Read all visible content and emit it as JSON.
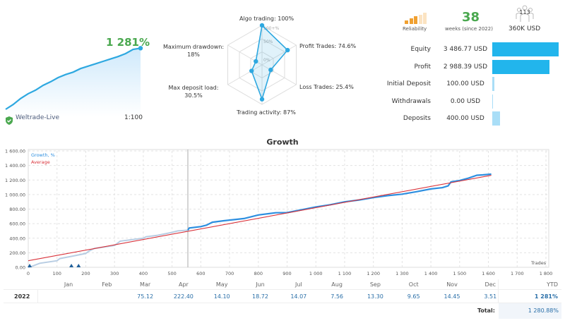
{
  "summary": {
    "growth": "1 281%",
    "server": "Weltrade-Live",
    "leverage": "1:100",
    "growth_curve": [
      0,
      8,
      18,
      26,
      32,
      40,
      46,
      53,
      58,
      62,
      68,
      72,
      76,
      80,
      84,
      88,
      93,
      100,
      102
    ]
  },
  "radar": {
    "scale_labels": [
      "100+%",
      "50%",
      "0%"
    ],
    "axes": [
      {
        "label": "Algo trading: 100%",
        "value": 100
      },
      {
        "label": "Profit Trades: 74.6%",
        "value": 74.6
      },
      {
        "label": "Loss Trades: 25.4%",
        "value": 25.4
      },
      {
        "label": "Trading activity: 87%",
        "value": 87
      },
      {
        "label_line1": "Max deposit load:",
        "label_line2": "30.5%",
        "value": 30.5
      },
      {
        "label_line1": "Maximum drawdown:",
        "label_line2": "18%",
        "value": 18
      }
    ]
  },
  "header_stats": {
    "reliability_label": "Reliability",
    "reliability_level": 3,
    "reliability_max": 5,
    "weeks": "38",
    "weeks_label": "weeks (since 2022)",
    "subscribers": "113",
    "funds": "360K USD"
  },
  "stats": [
    {
      "label": "Equity",
      "value": "3 486.77 USD",
      "fraction": 1.0,
      "color": "#22b5ec"
    },
    {
      "label": "Profit",
      "value": "2 988.39 USD",
      "fraction": 0.857,
      "color": "#22b5ec"
    },
    {
      "label": "Initial Deposit",
      "value": "100.00 USD",
      "fraction": 0.029,
      "color": "#a9def7"
    },
    {
      "label": "Withdrawals",
      "value": "0.00 USD",
      "fraction": 0.0,
      "color": "#a9def7"
    },
    {
      "label": "Deposits",
      "value": "400.00 USD",
      "fraction": 0.115,
      "color": "#a9def7"
    }
  ],
  "chart_data": {
    "type": "line",
    "title": "Growth",
    "xlabel": "Trades",
    "xlim": [
      0,
      1800
    ],
    "ylim": [
      0,
      1600
    ],
    "x_ticks": [
      "0",
      "100",
      "200",
      "300",
      "400",
      "500",
      "600",
      "700",
      "800",
      "900",
      "1 000",
      "1 100",
      "1 200",
      "1 300",
      "1 400",
      "1 500",
      "1 600",
      "1 700",
      "1 800"
    ],
    "y_ticks": [
      "0.00",
      "200.00",
      "400.00",
      "600.00",
      "800.00",
      "1 000.00",
      "1 200.00",
      "1 400.00",
      "1 600.00"
    ],
    "grid": true,
    "legend": "top-left",
    "marker_line_x": 555,
    "series": [
      {
        "name": "Growth, %",
        "color": "#2d8fe0",
        "x": [
          0,
          10,
          40,
          100,
          110,
          150,
          200,
          210,
          230,
          300,
          320,
          400,
          410,
          450,
          500,
          520,
          555,
          560,
          600,
          620,
          640,
          680,
          750,
          800,
          860,
          900,
          950,
          1000,
          1050,
          1100,
          1150,
          1200,
          1250,
          1300,
          1350,
          1400,
          1440,
          1460,
          1470,
          1500,
          1530,
          1560,
          1580,
          1610
        ],
        "y": [
          0,
          10,
          55,
          90,
          120,
          150,
          190,
          220,
          260,
          300,
          360,
          400,
          420,
          440,
          480,
          500,
          510,
          540,
          560,
          580,
          620,
          640,
          670,
          720,
          750,
          752,
          790,
          829,
          860,
          900,
          925,
          958,
          985,
          1006,
          1040,
          1077,
          1095,
          1119,
          1174,
          1194,
          1225,
          1265,
          1270,
          1281
        ]
      },
      {
        "name": "Average",
        "color": "#d9323a",
        "x": [
          0,
          1610
        ],
        "y": [
          90,
          1265
        ]
      }
    ],
    "markers_x": [
      5,
      150,
      175
    ]
  },
  "table": {
    "months": [
      "Jan",
      "Feb",
      "Mar",
      "Apr",
      "May",
      "Jun",
      "Jul",
      "Aug",
      "Sep",
      "Oct",
      "Nov",
      "Dec"
    ],
    "ytd_label": "YTD",
    "year": "2022",
    "values": [
      "",
      "",
      "75.12",
      "222.40",
      "14.10",
      "18.72",
      "14.07",
      "7.56",
      "13.30",
      "9.65",
      "14.45",
      "3.51"
    ],
    "ytd": "1 281%",
    "total_label": "Total:",
    "total": "1 280.88%"
  }
}
